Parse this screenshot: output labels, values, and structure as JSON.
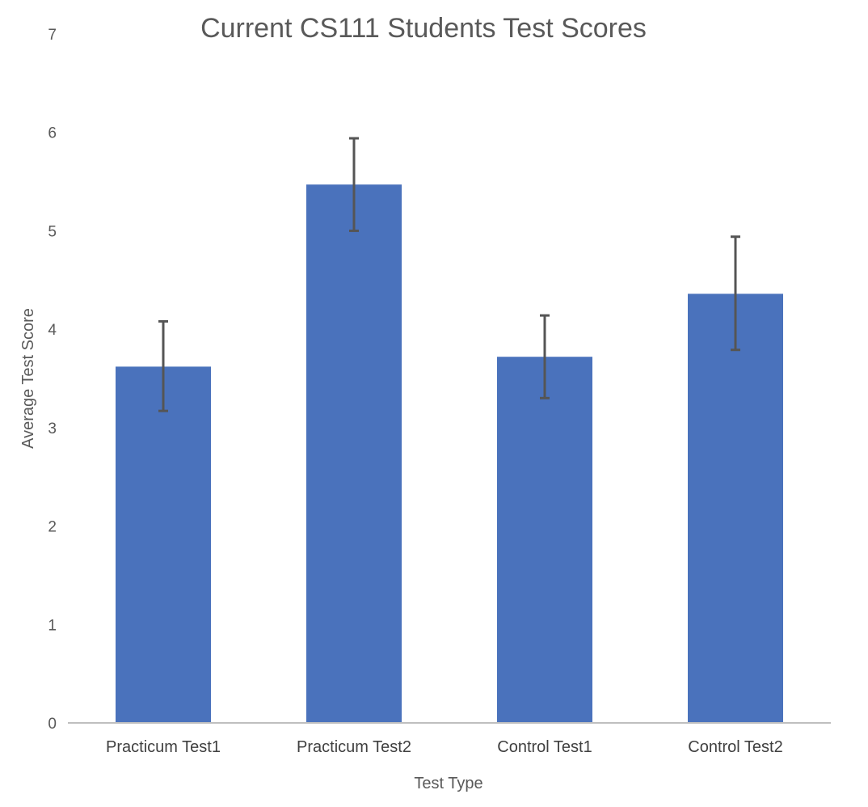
{
  "chart_data": {
    "type": "bar",
    "title": "Current  CS111 Students Test Scores",
    "xlabel": "Test Type",
    "ylabel": "Average Test Score",
    "categories": [
      "Practicum Test1",
      "Practicum Test2",
      "Control Test1",
      "Control Test2"
    ],
    "values": [
      3.62,
      5.47,
      3.72,
      4.36
    ],
    "error_low": [
      3.17,
      5.0,
      3.3,
      3.79
    ],
    "error_high": [
      4.08,
      5.94,
      4.14,
      4.94
    ],
    "ylim": [
      0,
      7
    ],
    "yticks": [
      0,
      1,
      2,
      3,
      4,
      5,
      6,
      7
    ],
    "grid": false,
    "legend": "none",
    "bar_color": "#4A72BC",
    "error_bar_color": "#555555",
    "axis_color": "#BFBFBF"
  }
}
